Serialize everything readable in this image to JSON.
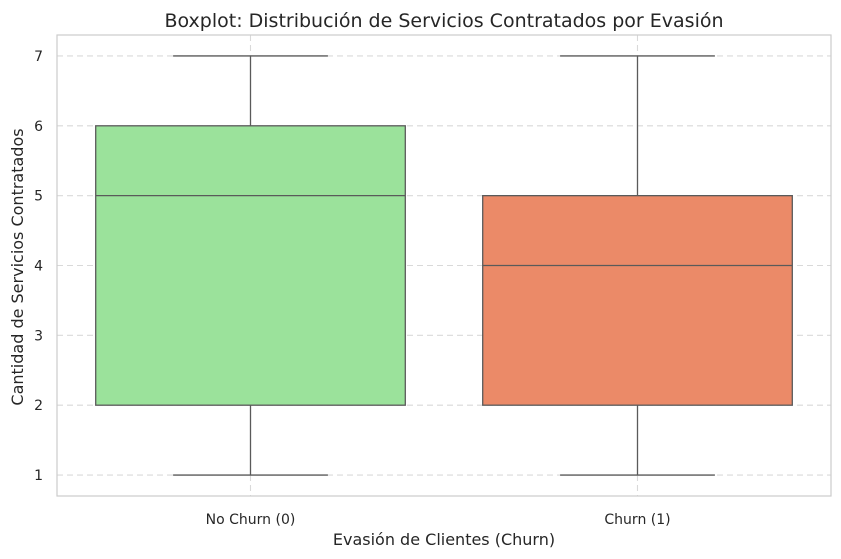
{
  "chart_data": {
    "type": "box",
    "title": "Boxplot: Distribución de Servicios Contratados por Evasión",
    "xlabel": "Evasión de Clientes (Churn)",
    "ylabel": "Cantidad de Servicios Contratados",
    "categories": [
      "No Churn (0)",
      "Churn (1)"
    ],
    "boxes": [
      {
        "category": "No Churn (0)",
        "min": 1,
        "q1": 2,
        "median": 5,
        "q3": 6,
        "max": 7,
        "color": "#9be29b"
      },
      {
        "category": "Churn (1)",
        "min": 1,
        "q1": 2,
        "median": 4,
        "q3": 5,
        "max": 7,
        "color": "#eb8a68"
      }
    ],
    "ylim": [
      0.7,
      7.3
    ],
    "yticks": [
      1,
      2,
      3,
      4,
      5,
      6,
      7
    ],
    "grid": true
  }
}
